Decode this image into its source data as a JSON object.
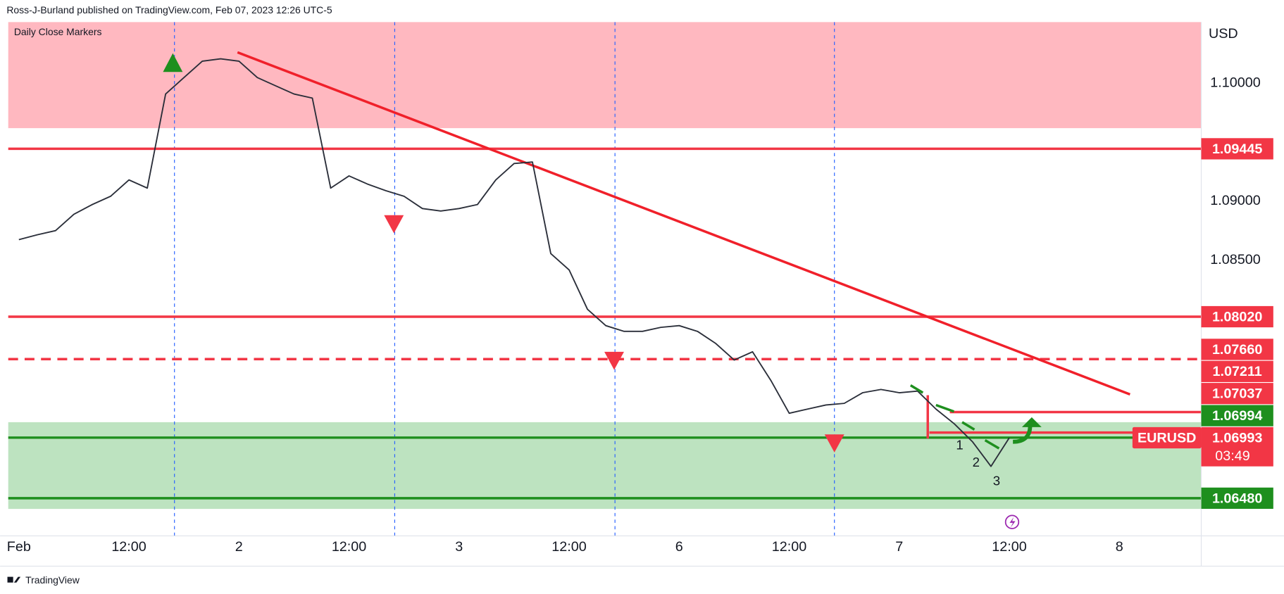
{
  "chart_data": {
    "type": "line",
    "header": "Ross-J-Burland published on TradingView.com, Feb 07, 2023 12:26 UTC-5",
    "legend_title": "Daily Close Markers",
    "currency": "USD",
    "brand": "TradingView",
    "annotations": [
      "1",
      "2",
      "3"
    ],
    "categories": [
      "Feb",
      null,
      null,
      null,
      null,
      null,
      "12:00",
      null,
      null,
      null,
      null,
      null,
      "2",
      null,
      null,
      null,
      null,
      null,
      "12:00",
      null,
      null,
      null,
      null,
      null,
      "3",
      null,
      null,
      null,
      null,
      null,
      "12:00",
      null,
      null,
      null,
      null,
      null,
      "6",
      null,
      null,
      null,
      null,
      null,
      "12:00",
      null,
      null,
      null,
      null,
      null,
      "7",
      null,
      null,
      null,
      null,
      null,
      "12:00",
      null,
      null,
      null,
      null,
      null,
      "8",
      null,
      null,
      null,
      null
    ],
    "values": [
      1.08674,
      1.08715,
      1.0875,
      1.08889,
      1.08972,
      1.09042,
      1.09181,
      1.09111,
      1.0991,
      1.10049,
      1.10188,
      1.10208,
      1.10188,
      1.10049,
      1.09979,
      1.0991,
      1.09875,
      1.09111,
      1.09215,
      1.09146,
      1.0909,
      1.09042,
      1.08938,
      1.08917,
      1.08938,
      1.08972,
      1.09181,
      1.0932,
      1.09333,
      1.08556,
      1.08417,
      1.08083,
      1.07944,
      1.07896,
      1.07896,
      1.0793,
      1.07944,
      1.07896,
      1.07792,
      1.07653,
      1.07722,
      1.07479,
      1.07201,
      1.07236,
      1.07271,
      1.07285,
      1.07375,
      1.07403,
      1.07375,
      1.07389,
      1.07236,
      1.07111,
      1.06958,
      1.0675,
      1.06993,
      null,
      null,
      null,
      null,
      null,
      null,
      null,
      null,
      null,
      null
    ],
    "color": "#2a2e39",
    "ylim": [
      1.0616,
      1.1052
    ],
    "yticks": [
      {
        "value": 1.085,
        "label": "1.08500"
      },
      {
        "value": 1.09,
        "label": "1.09000"
      },
      {
        "value": 1.1,
        "label": "1.10000"
      }
    ],
    "grid": false,
    "bands": [
      {
        "range": [
          1.0962,
          1.1052
        ],
        "color": "#ffb8c0"
      },
      {
        "range": [
          1.06389,
          1.07125
        ],
        "color": "#bde3c0"
      }
    ],
    "levels": [
      {
        "value": 1.09445,
        "label": "1.09445",
        "color": "#f23645",
        "style": "solid"
      },
      {
        "value": 1.0802,
        "label": "1.08020",
        "color": "#f23645",
        "style": "solid"
      },
      {
        "value": 1.0766,
        "label": "1.07660",
        "color": "#f23645",
        "style": "dashed"
      },
      {
        "value": 1.07211,
        "label": "1.07211",
        "color": "#f23645",
        "style": "solid"
      },
      {
        "value": 1.07037,
        "label": "1.07037",
        "color": "#f23645",
        "style": "solid"
      },
      {
        "value": 1.06994,
        "label": "1.06994",
        "color": "#1e8f1e",
        "style": "solid"
      },
      {
        "value": 1.0648,
        "label": "1.06480",
        "color": "#1e8f1e",
        "style": "solid"
      }
    ],
    "last": {
      "symbol": "EURUSD",
      "price": {
        "value": 1.06993,
        "label": "1.06993"
      },
      "countdown": "03:49",
      "color": "#f23645"
    }
  }
}
